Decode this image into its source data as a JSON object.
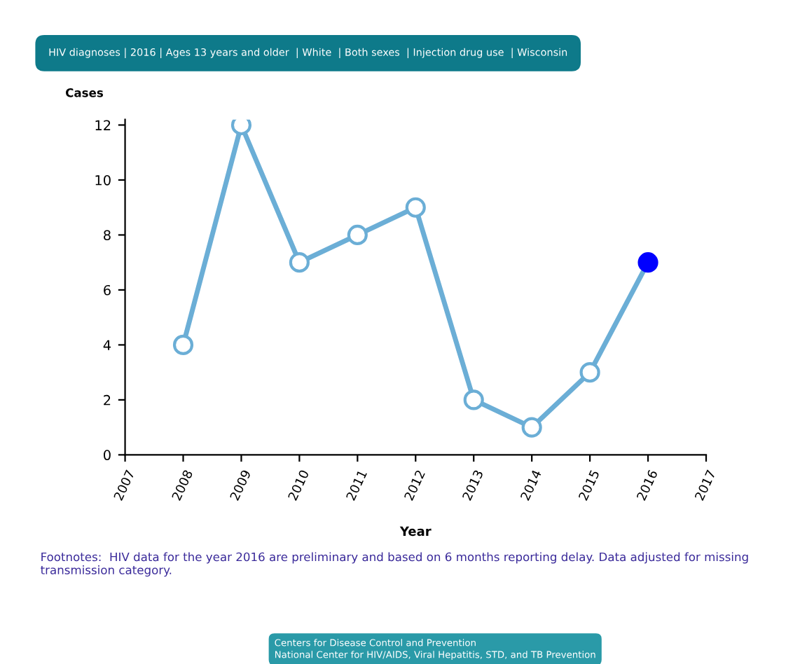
{
  "chart_data": {
    "type": "line",
    "title": "HIV diagnoses | 2016 | Ages 13 years and older  | White  | Both sexes  | Injection drug use  | Wisconsin",
    "xlabel": "Year",
    "ylabel": "Cases",
    "x": [
      2008,
      2009,
      2010,
      2011,
      2012,
      2013,
      2014,
      2015,
      2016
    ],
    "series": [
      {
        "color": "#6baed6",
        "values": [
          4,
          12,
          7,
          8,
          9,
          2,
          1,
          3,
          7
        ],
        "colors": [
          "#6baed6",
          "#6baed6",
          "#6baed6",
          "#6baed6",
          "#6baed6",
          "#6baed6",
          "#6baed6",
          "#6baed6",
          "#0000ff"
        ]
      }
    ],
    "xlim": [
      2007,
      2017
    ],
    "xticks": [
      2007,
      2008,
      2009,
      2010,
      2011,
      2012,
      2013,
      2014,
      2015,
      2016,
      2017
    ],
    "ylim": [
      0,
      12.2
    ],
    "yticks": [
      0,
      2,
      4,
      6,
      8,
      10,
      12
    ],
    "grid": false,
    "legend": false,
    "marker": "circle",
    "line_style": "solid",
    "annotations": [
      "Footnotes:  HIV data for the year 2016 are preliminary and based on 6 months reporting delay. Data adjusted for missing transmission category.",
      "Centers for Disease Control and Prevention",
      "National Center for HIV/AIDS, Viral Hepatitis, STD, and TB Prevention"
    ]
  }
}
